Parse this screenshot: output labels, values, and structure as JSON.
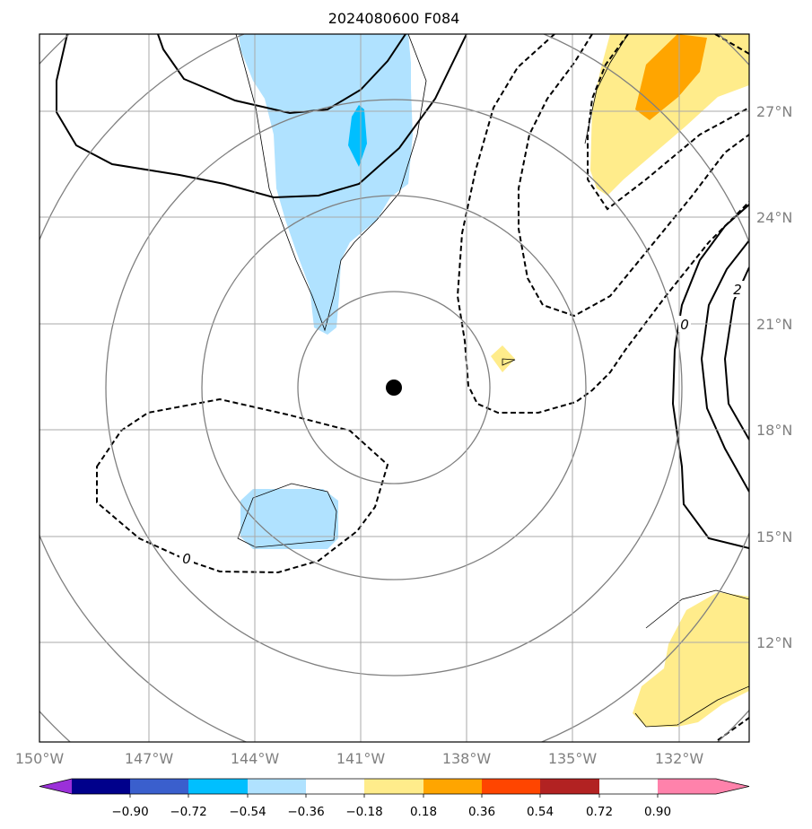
{
  "title": "2024080600 F084",
  "map": {
    "lon_labels": [
      "150°W",
      "147°W",
      "144°W",
      "141°W",
      "138°W",
      "135°W",
      "132°W"
    ],
    "lat_labels": [
      "27°N",
      "24°N",
      "21°N",
      "18°N",
      "15°N",
      "12°N"
    ],
    "contour_labels": [
      "0",
      "0",
      "2"
    ],
    "center_marker": "storm-center-dot"
  },
  "colorbar": {
    "tick_labels": [
      "−0.90",
      "−0.72",
      "−0.54",
      "−0.36",
      "−0.18",
      "0.18",
      "0.36",
      "0.54",
      "0.72",
      "0.90"
    ],
    "colors": [
      "#9b30d9",
      "#00008b",
      "#3a5fcd",
      "#00bfff",
      "#b0e2ff",
      "#ffffff",
      "#ffec8b",
      "#ffa500",
      "#ff4500",
      "#b22222",
      "#ff82ab"
    ],
    "extend": "both"
  }
}
